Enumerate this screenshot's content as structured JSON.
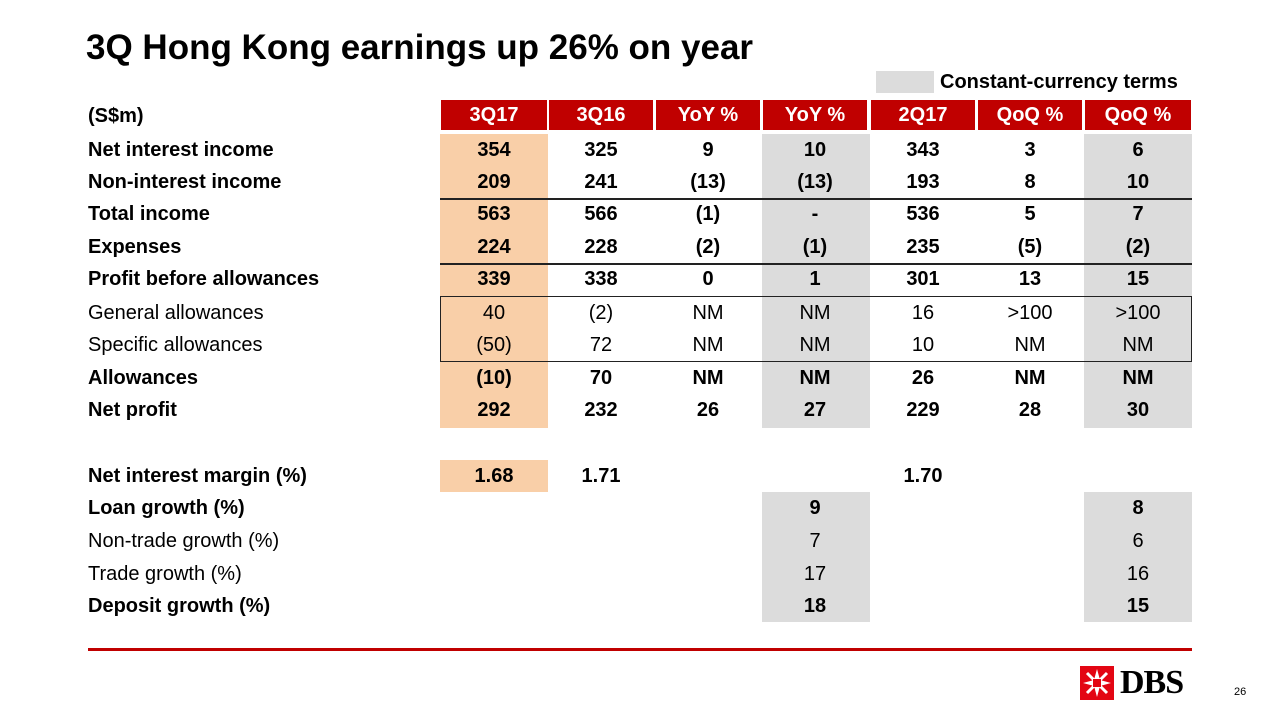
{
  "title": "3Q Hong Kong earnings up 26% on year",
  "legend": "Constant-currency terms",
  "unit": "(S$m)",
  "columns": [
    "3Q17",
    "3Q16",
    "YoY %",
    "YoY %",
    "2Q17",
    "QoQ %",
    "QoQ %"
  ],
  "rows": [
    {
      "label": "Net interest income",
      "values": [
        "354",
        "325",
        "9",
        "10",
        "343",
        "3",
        "6"
      ]
    },
    {
      "label": "Non-interest income",
      "values": [
        "209",
        "241",
        "(13)",
        "(13)",
        "193",
        "8",
        "10"
      ]
    },
    {
      "label": "Total income",
      "values": [
        "563",
        "566",
        "(1)",
        "-",
        "536",
        "5",
        "7"
      ]
    },
    {
      "label": "Expenses",
      "values": [
        "224",
        "228",
        "(2)",
        "(1)",
        "235",
        "(5)",
        "(2)"
      ]
    },
    {
      "label": "Profit before allowances",
      "values": [
        "339",
        "338",
        "0",
        "1",
        "301",
        "13",
        "15"
      ]
    },
    {
      "label": "General allowances",
      "values": [
        "40",
        "(2)",
        "NM",
        "NM",
        "16",
        ">100",
        ">100"
      ]
    },
    {
      "label": "Specific allowances",
      "values": [
        "(50)",
        "72",
        "NM",
        "NM",
        "10",
        "NM",
        "NM"
      ]
    },
    {
      "label": "Allowances",
      "values": [
        "(10)",
        "70",
        "NM",
        "NM",
        "26",
        "NM",
        "NM"
      ]
    },
    {
      "label": "Net profit",
      "values": [
        "292",
        "232",
        "26",
        "27",
        "229",
        "28",
        "30"
      ]
    },
    {
      "label": "Net interest margin (%)",
      "values": [
        "1.68",
        "1.71",
        "",
        "",
        "1.70",
        "",
        ""
      ]
    },
    {
      "label": "Loan growth (%)",
      "values": [
        "",
        "",
        "",
        "9",
        "",
        "",
        "8"
      ]
    },
    {
      "label": "Non-trade growth (%)",
      "values": [
        "",
        "",
        "",
        "7",
        "",
        "",
        "6"
      ]
    },
    {
      "label": "Trade growth (%)",
      "values": [
        "",
        "",
        "",
        "17",
        "",
        "",
        "16"
      ]
    },
    {
      "label": "Deposit growth (%)",
      "values": [
        "",
        "",
        "",
        "18",
        "",
        "",
        "15"
      ]
    }
  ],
  "logo": {
    "text": "DBS",
    "icon": "dbs-star-icon",
    "color": "#e30613"
  },
  "page_number": "26",
  "colors": {
    "header": "#c00000",
    "highlight": "#f9cfa8",
    "constant_currency": "#dcdcdc",
    "accent_line": "#c00000"
  }
}
